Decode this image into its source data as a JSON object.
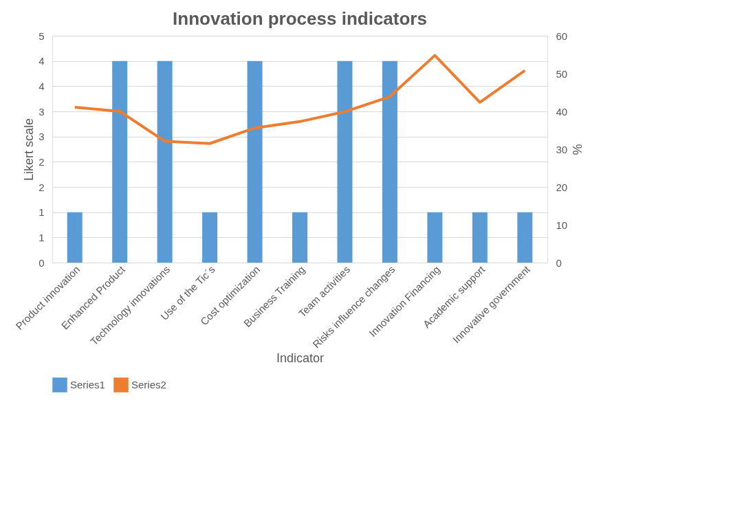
{
  "chart_data": {
    "type": "bar",
    "title": "Innovation process indicators",
    "xlabel": "Indicator",
    "ylabel": "Likert scale",
    "y2label": "%",
    "categories": [
      "Product innovation",
      "Enhanced Product",
      "Technology innovations",
      "Use of the Tic´s",
      "Cost optimization",
      "Business Training",
      "Team activities",
      "Risks influence changes",
      "Innovation Financing",
      "Academic support",
      "Innovative government"
    ],
    "series": [
      {
        "name": "Series1",
        "color": "#5b9bd5",
        "values": [
          1,
          4,
          4,
          1,
          4,
          1,
          4,
          4,
          1,
          1,
          1
        ]
      },
      {
        "name": "Series2",
        "type": "line",
        "axis": "y2",
        "color": "#ed7d31",
        "values": [
          41.1,
          40.0,
          32.1,
          31.5,
          35.6,
          37.3,
          39.9,
          43.9,
          54.8,
          42.4,
          50.8
        ]
      }
    ],
    "ylim": [
      0,
      4.5
    ],
    "yticks": [
      0,
      {
        "value": 0.5,
        "label": "1"
      },
      1,
      {
        "value": 1.5,
        "label": "2"
      },
      2,
      {
        "value": 2.5,
        "label": "3"
      },
      3,
      {
        "value": 3.5,
        "label": "4"
      },
      4,
      {
        "value": 4.5,
        "label": "5"
      }
    ],
    "y2lim": [
      0,
      60
    ],
    "y2ticks": [
      0,
      10,
      20,
      30,
      40,
      50,
      60
    ],
    "grid": "y",
    "legend": "bottom",
    "line_style": "solid",
    "marker": "none"
  }
}
